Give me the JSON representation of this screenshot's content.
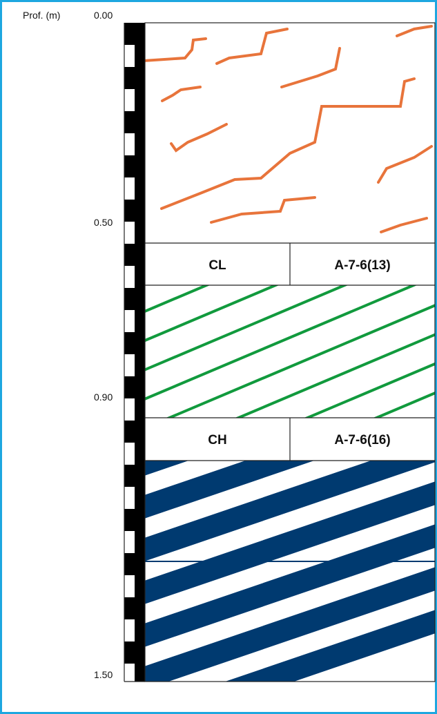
{
  "header": {
    "title": "Prof. (m)"
  },
  "depths": [
    "0.00",
    "0.50",
    "0.90",
    "1.50"
  ],
  "layers": [
    {
      "uscs": "CL",
      "aashto": "A-7-6(13)"
    },
    {
      "uscs": "CH",
      "aashto": "A-7-6(16)"
    }
  ]
}
